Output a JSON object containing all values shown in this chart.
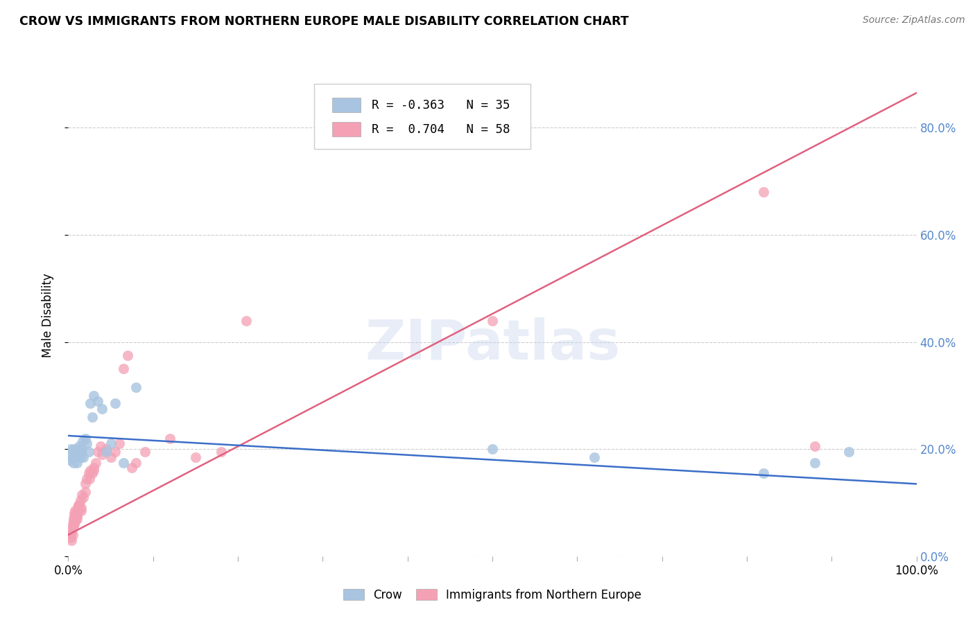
{
  "title": "CROW VS IMMIGRANTS FROM NORTHERN EUROPE MALE DISABILITY CORRELATION CHART",
  "source": "Source: ZipAtlas.com",
  "ylabel": "Male Disability",
  "legend_crow_r": "-0.363",
  "legend_crow_n": "35",
  "legend_imm_r": "0.704",
  "legend_imm_n": "58",
  "legend_label_crow": "Crow",
  "legend_label_imm": "Immigrants from Northern Europe",
  "crow_color": "#a8c4e0",
  "imm_color": "#f4a0b5",
  "crow_line_color": "#3b6ec8",
  "imm_line_color": "#e06080",
  "axis_label_color": "#5588cc",
  "ytick_labels": [
    "0.0%",
    "20.0%",
    "40.0%",
    "60.0%",
    "80.0%"
  ],
  "ytick_values": [
    0.0,
    0.2,
    0.4,
    0.6,
    0.8
  ],
  "xlim": [
    0.0,
    1.0
  ],
  "ylim": [
    0.0,
    0.9
  ],
  "crow_scatter_x": [
    0.002,
    0.003,
    0.004,
    0.005,
    0.006,
    0.007,
    0.008,
    0.009,
    0.01,
    0.011,
    0.012,
    0.013,
    0.014,
    0.015,
    0.016,
    0.017,
    0.018,
    0.02,
    0.022,
    0.024,
    0.026,
    0.028,
    0.03,
    0.035,
    0.04,
    0.045,
    0.05,
    0.055,
    0.065,
    0.08,
    0.5,
    0.62,
    0.82,
    0.88,
    0.92
  ],
  "crow_scatter_y": [
    0.18,
    0.2,
    0.185,
    0.195,
    0.175,
    0.2,
    0.185,
    0.19,
    0.175,
    0.2,
    0.195,
    0.205,
    0.185,
    0.195,
    0.2,
    0.215,
    0.185,
    0.22,
    0.21,
    0.195,
    0.285,
    0.26,
    0.3,
    0.29,
    0.275,
    0.195,
    0.21,
    0.285,
    0.175,
    0.315,
    0.2,
    0.185,
    0.155,
    0.175,
    0.195
  ],
  "imm_scatter_x": [
    0.002,
    0.003,
    0.004,
    0.005,
    0.006,
    0.006,
    0.007,
    0.007,
    0.008,
    0.009,
    0.01,
    0.01,
    0.011,
    0.012,
    0.013,
    0.014,
    0.015,
    0.016,
    0.018,
    0.02,
    0.022,
    0.024,
    0.026,
    0.028,
    0.03,
    0.032,
    0.035,
    0.038,
    0.04,
    0.045,
    0.05,
    0.055,
    0.06,
    0.065,
    0.07,
    0.075,
    0.08,
    0.09,
    0.12,
    0.15,
    0.18,
    0.21,
    0.5,
    0.82,
    0.88,
    0.003,
    0.004,
    0.005,
    0.006,
    0.007,
    0.008,
    0.009,
    0.01,
    0.012,
    0.015,
    0.02,
    0.025,
    0.03
  ],
  "imm_scatter_y": [
    0.04,
    0.05,
    0.045,
    0.06,
    0.07,
    0.065,
    0.075,
    0.08,
    0.085,
    0.075,
    0.07,
    0.08,
    0.09,
    0.085,
    0.095,
    0.105,
    0.09,
    0.115,
    0.11,
    0.135,
    0.145,
    0.155,
    0.16,
    0.155,
    0.165,
    0.175,
    0.195,
    0.205,
    0.19,
    0.2,
    0.185,
    0.195,
    0.21,
    0.35,
    0.375,
    0.165,
    0.175,
    0.195,
    0.22,
    0.185,
    0.195,
    0.44,
    0.44,
    0.68,
    0.205,
    0.035,
    0.03,
    0.04,
    0.055,
    0.06,
    0.065,
    0.07,
    0.075,
    0.095,
    0.085,
    0.12,
    0.145,
    0.16
  ],
  "crow_line_x": [
    0.0,
    1.0
  ],
  "crow_line_y": [
    0.225,
    0.135
  ],
  "imm_line_x": [
    0.0,
    1.0
  ],
  "imm_line_y": [
    0.04,
    0.865
  ]
}
